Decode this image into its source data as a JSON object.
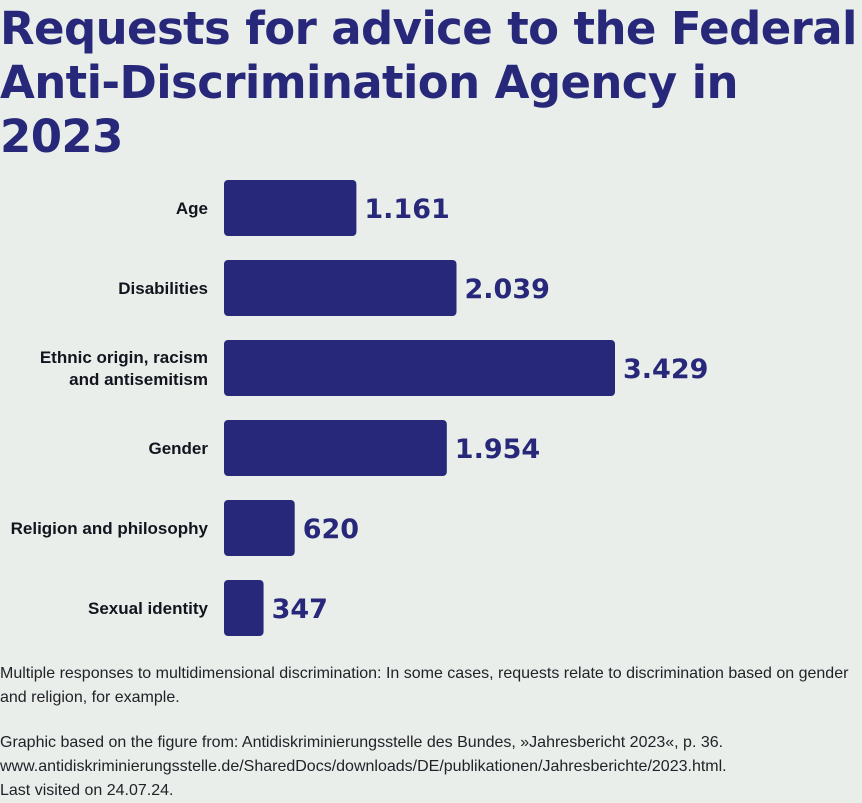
{
  "title_line1": "Requests for advice to the Federal",
  "title_line2": "Anti-Discrimination Agency in 2023",
  "note": "Multiple responses to multidimensional discrimination: In some cases, requests relate to discrimination based on gender and religion, for example.",
  "source": {
    "line1": "Graphic based on the figure from: Antidiskriminierungsstelle des Bundes, »Jahresbericht 2023«, p. 36.",
    "line2": "www.antidiskriminierungsstelle.de/SharedDocs/downloads/DE/publikationen/Jahresberichte/2023.html.",
    "line3": "Last visited on 24.07.24."
  },
  "colors": {
    "bar": "#28287a",
    "background": "#e9eeea",
    "title": "#28287a"
  },
  "chart_data": {
    "type": "bar",
    "orientation": "horizontal",
    "title": "Requests for advice to the Federal Anti-Discrimination Agency in 2023",
    "categories": [
      [
        "Age"
      ],
      [
        "Disabilities"
      ],
      [
        "Ethnic origin, racism",
        "and antisemitism"
      ],
      [
        "Gender"
      ],
      [
        "Religion and philosophy"
      ],
      [
        "Sexual identity"
      ]
    ],
    "values": [
      1161,
      2039,
      3429,
      1954,
      620,
      347
    ],
    "value_labels": [
      "1.161",
      "2.039",
      "3.429",
      "1.954",
      "620",
      "347"
    ],
    "xlim": [
      0,
      3429
    ],
    "grid": false,
    "legend": "none"
  }
}
